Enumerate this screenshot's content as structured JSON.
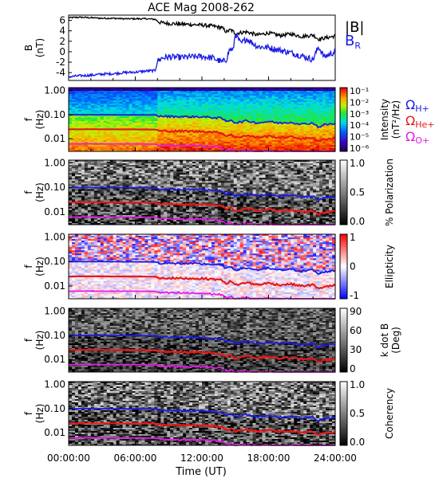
{
  "title": "ACE Mag 2008-262",
  "xlabel": "Time (UT)",
  "x_ticks": [
    "00:00:00",
    "06:00:00",
    "12:00:00",
    "18:00:00",
    "24:00:00"
  ],
  "freq_ticks": [
    "1.00",
    "0.10",
    "0.01"
  ],
  "freq_ylabel_line1": "f",
  "freq_ylabel_line2": "(Hz)",
  "legend": {
    "b_total": "|B|",
    "b_r_main": "B",
    "b_r_sub": "R",
    "h_plus_main": "Ω",
    "h_plus_sub": "H+",
    "he_plus_main": "Ω",
    "he_plus_sub": "He+",
    "o_plus_main": "Ω",
    "o_plus_sub": "O+"
  },
  "colors": {
    "b_total": "#000000",
    "b_r": "#1a1ae6",
    "h_plus": "#1a1ae6",
    "he_plus": "#e61a1a",
    "o_plus": "#e61ae6"
  },
  "chart_data": [
    {
      "type": "line",
      "panel": "magnetic-field",
      "ylabel_line1": "B",
      "ylabel_line2": "(nT)",
      "y_ticks": [
        "6",
        "4",
        "2",
        "0",
        "-2",
        "-4"
      ],
      "ylim": [
        -5.5,
        7
      ],
      "xlim_hours": [
        0,
        24
      ],
      "series": [
        {
          "name": "|B|",
          "x": [
            0,
            1,
            2,
            3,
            4,
            5,
            6,
            7,
            7.8,
            8.2,
            9,
            10,
            11,
            12,
            13,
            13.8,
            14.2,
            14.6,
            15,
            16,
            17,
            18,
            19,
            20,
            21,
            22,
            22.5,
            23,
            24
          ],
          "y": [
            6.5,
            6.6,
            6.5,
            6.4,
            6.4,
            6.3,
            6.3,
            6.3,
            6.2,
            5.6,
            5.4,
            5.3,
            5.2,
            5.1,
            4.9,
            4.6,
            3.8,
            4.2,
            3.5,
            3.8,
            3.2,
            3.6,
            3.1,
            3.4,
            2.9,
            3.2,
            2.4,
            2.6,
            3.0
          ]
        },
        {
          "name": "B_R",
          "x": [
            0,
            1,
            2,
            3,
            4,
            5,
            6,
            7,
            7.8,
            8.0,
            8.4,
            9,
            10,
            11,
            12,
            13,
            13.8,
            14.2,
            14.5,
            14.8,
            15,
            15.5,
            16,
            17,
            18,
            19,
            20,
            21,
            22,
            22.5,
            23,
            24
          ],
          "y": [
            -4.8,
            -4.6,
            -4.5,
            -4.3,
            -4.2,
            -4.0,
            -3.9,
            -3.7,
            -3.6,
            -1.8,
            -1.2,
            -1.0,
            -1.1,
            -1.0,
            -0.9,
            -1.2,
            -2.0,
            -1.5,
            0.5,
            0.2,
            3.5,
            1.5,
            2.5,
            1.0,
            0.8,
            0.3,
            -0.2,
            -0.8,
            -1.5,
            1.0,
            -1.0,
            0.0
          ]
        }
      ]
    },
    {
      "type": "heatmap",
      "panel": "intensity",
      "colorbar_label": "Intensity",
      "colorbar_label_line2": "(nT²/Hz)",
      "colorbar_ticks": [
        "10⁻¹",
        "10⁻²",
        "10⁻³",
        "10⁻⁴",
        "10⁻⁵",
        "10⁻⁶"
      ],
      "colorscale": "rainbow",
      "freq_range_hz": [
        0.003,
        1.3
      ]
    },
    {
      "type": "heatmap",
      "panel": "polarization",
      "colorbar_label": "% Polarization",
      "colorbar_ticks": [
        "1.0",
        "0.5",
        "0.0"
      ],
      "colorscale": "grayscale"
    },
    {
      "type": "heatmap",
      "panel": "ellipticity",
      "colorbar_label": "Ellipticity",
      "colorbar_ticks": [
        "1",
        "0",
        "-1"
      ],
      "colorscale": "blue-white-red"
    },
    {
      "type": "heatmap",
      "panel": "k-dot-b",
      "colorbar_label": "k dot B",
      "colorbar_label_line2": "(Deg)",
      "colorbar_ticks": [
        "90",
        "60",
        "30",
        "0"
      ],
      "colorscale": "grayscale"
    },
    {
      "type": "heatmap",
      "panel": "coherency",
      "colorbar_label": "Coherency",
      "colorbar_ticks": [
        "1.0",
        "0.5",
        "0.0"
      ],
      "colorscale": "grayscale"
    }
  ],
  "gyro_lines": {
    "x_hours": [
      0,
      2,
      4,
      6,
      7.8,
      8.2,
      10,
      12,
      13,
      13.8,
      14.2,
      14.6,
      15,
      16,
      17,
      18,
      19,
      20,
      21,
      22,
      22.5,
      23,
      24
    ],
    "h_plus_hz": [
      0.098,
      0.099,
      0.098,
      0.097,
      0.096,
      0.085,
      0.082,
      0.08,
      0.075,
      0.07,
      0.05,
      0.062,
      0.045,
      0.055,
      0.045,
      0.052,
      0.044,
      0.048,
      0.04,
      0.045,
      0.03,
      0.038,
      0.042
    ],
    "he_plus_hz": [
      0.0245,
      0.0247,
      0.0245,
      0.0243,
      0.024,
      0.021,
      0.0205,
      0.02,
      0.019,
      0.0175,
      0.0125,
      0.0155,
      0.011,
      0.0138,
      0.0112,
      0.013,
      0.011,
      0.012,
      0.01,
      0.0112,
      0.0075,
      0.0095,
      0.0105
    ],
    "o_plus_hz": [
      0.0061,
      0.0062,
      0.0061,
      0.0061,
      0.006,
      0.0053,
      0.0051,
      0.005,
      0.0047,
      0.0044,
      0.0031,
      0.0039,
      0.0028,
      0.0034,
      0.0028,
      0.0032,
      0.0027,
      0.003,
      0.0025,
      0.0028,
      0.0019,
      0.0024,
      0.0026
    ]
  }
}
